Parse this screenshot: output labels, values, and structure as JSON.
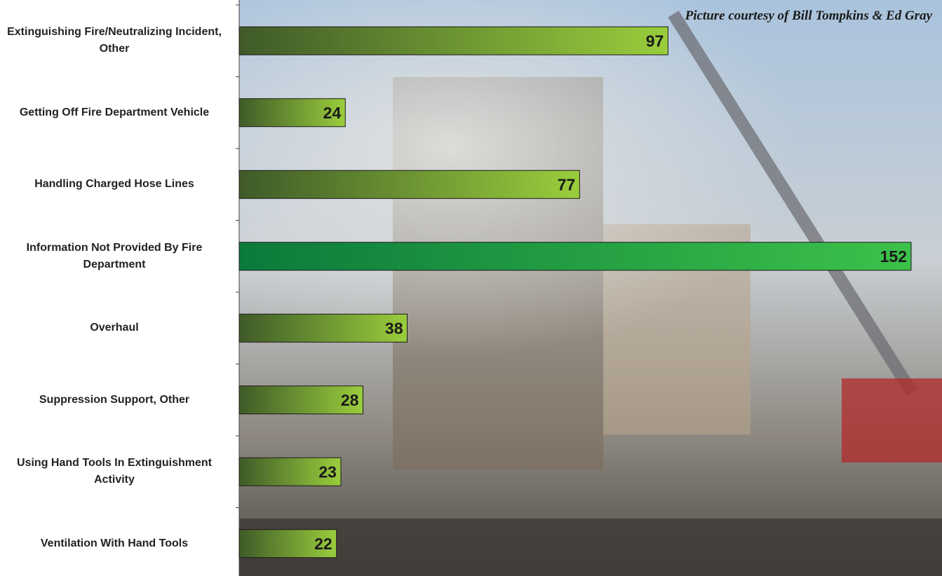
{
  "chart_data": {
    "type": "bar",
    "orientation": "horizontal",
    "credit": "Picture courtesy of Bill Tompkins & Ed Gray",
    "categories": [
      "Extinguishing Fire/Neutralizing Incident, Other",
      "Getting Off Fire Department Vehicle",
      "Handling Charged Hose Lines",
      "Information Not Provided By Fire Department",
      "Overhaul",
      "Suppression Support, Other",
      "Using Hand Tools In Extinguishment Activity",
      "Ventilation With Hand Tools"
    ],
    "values": [
      97,
      24,
      77,
      152,
      38,
      28,
      23,
      22
    ],
    "colors": [
      "#9acd3c",
      "#9acd3c",
      "#9acd3c",
      "#3cc24a",
      "#9acd3c",
      "#9acd3c",
      "#9acd3c",
      "#9acd3c"
    ]
  }
}
